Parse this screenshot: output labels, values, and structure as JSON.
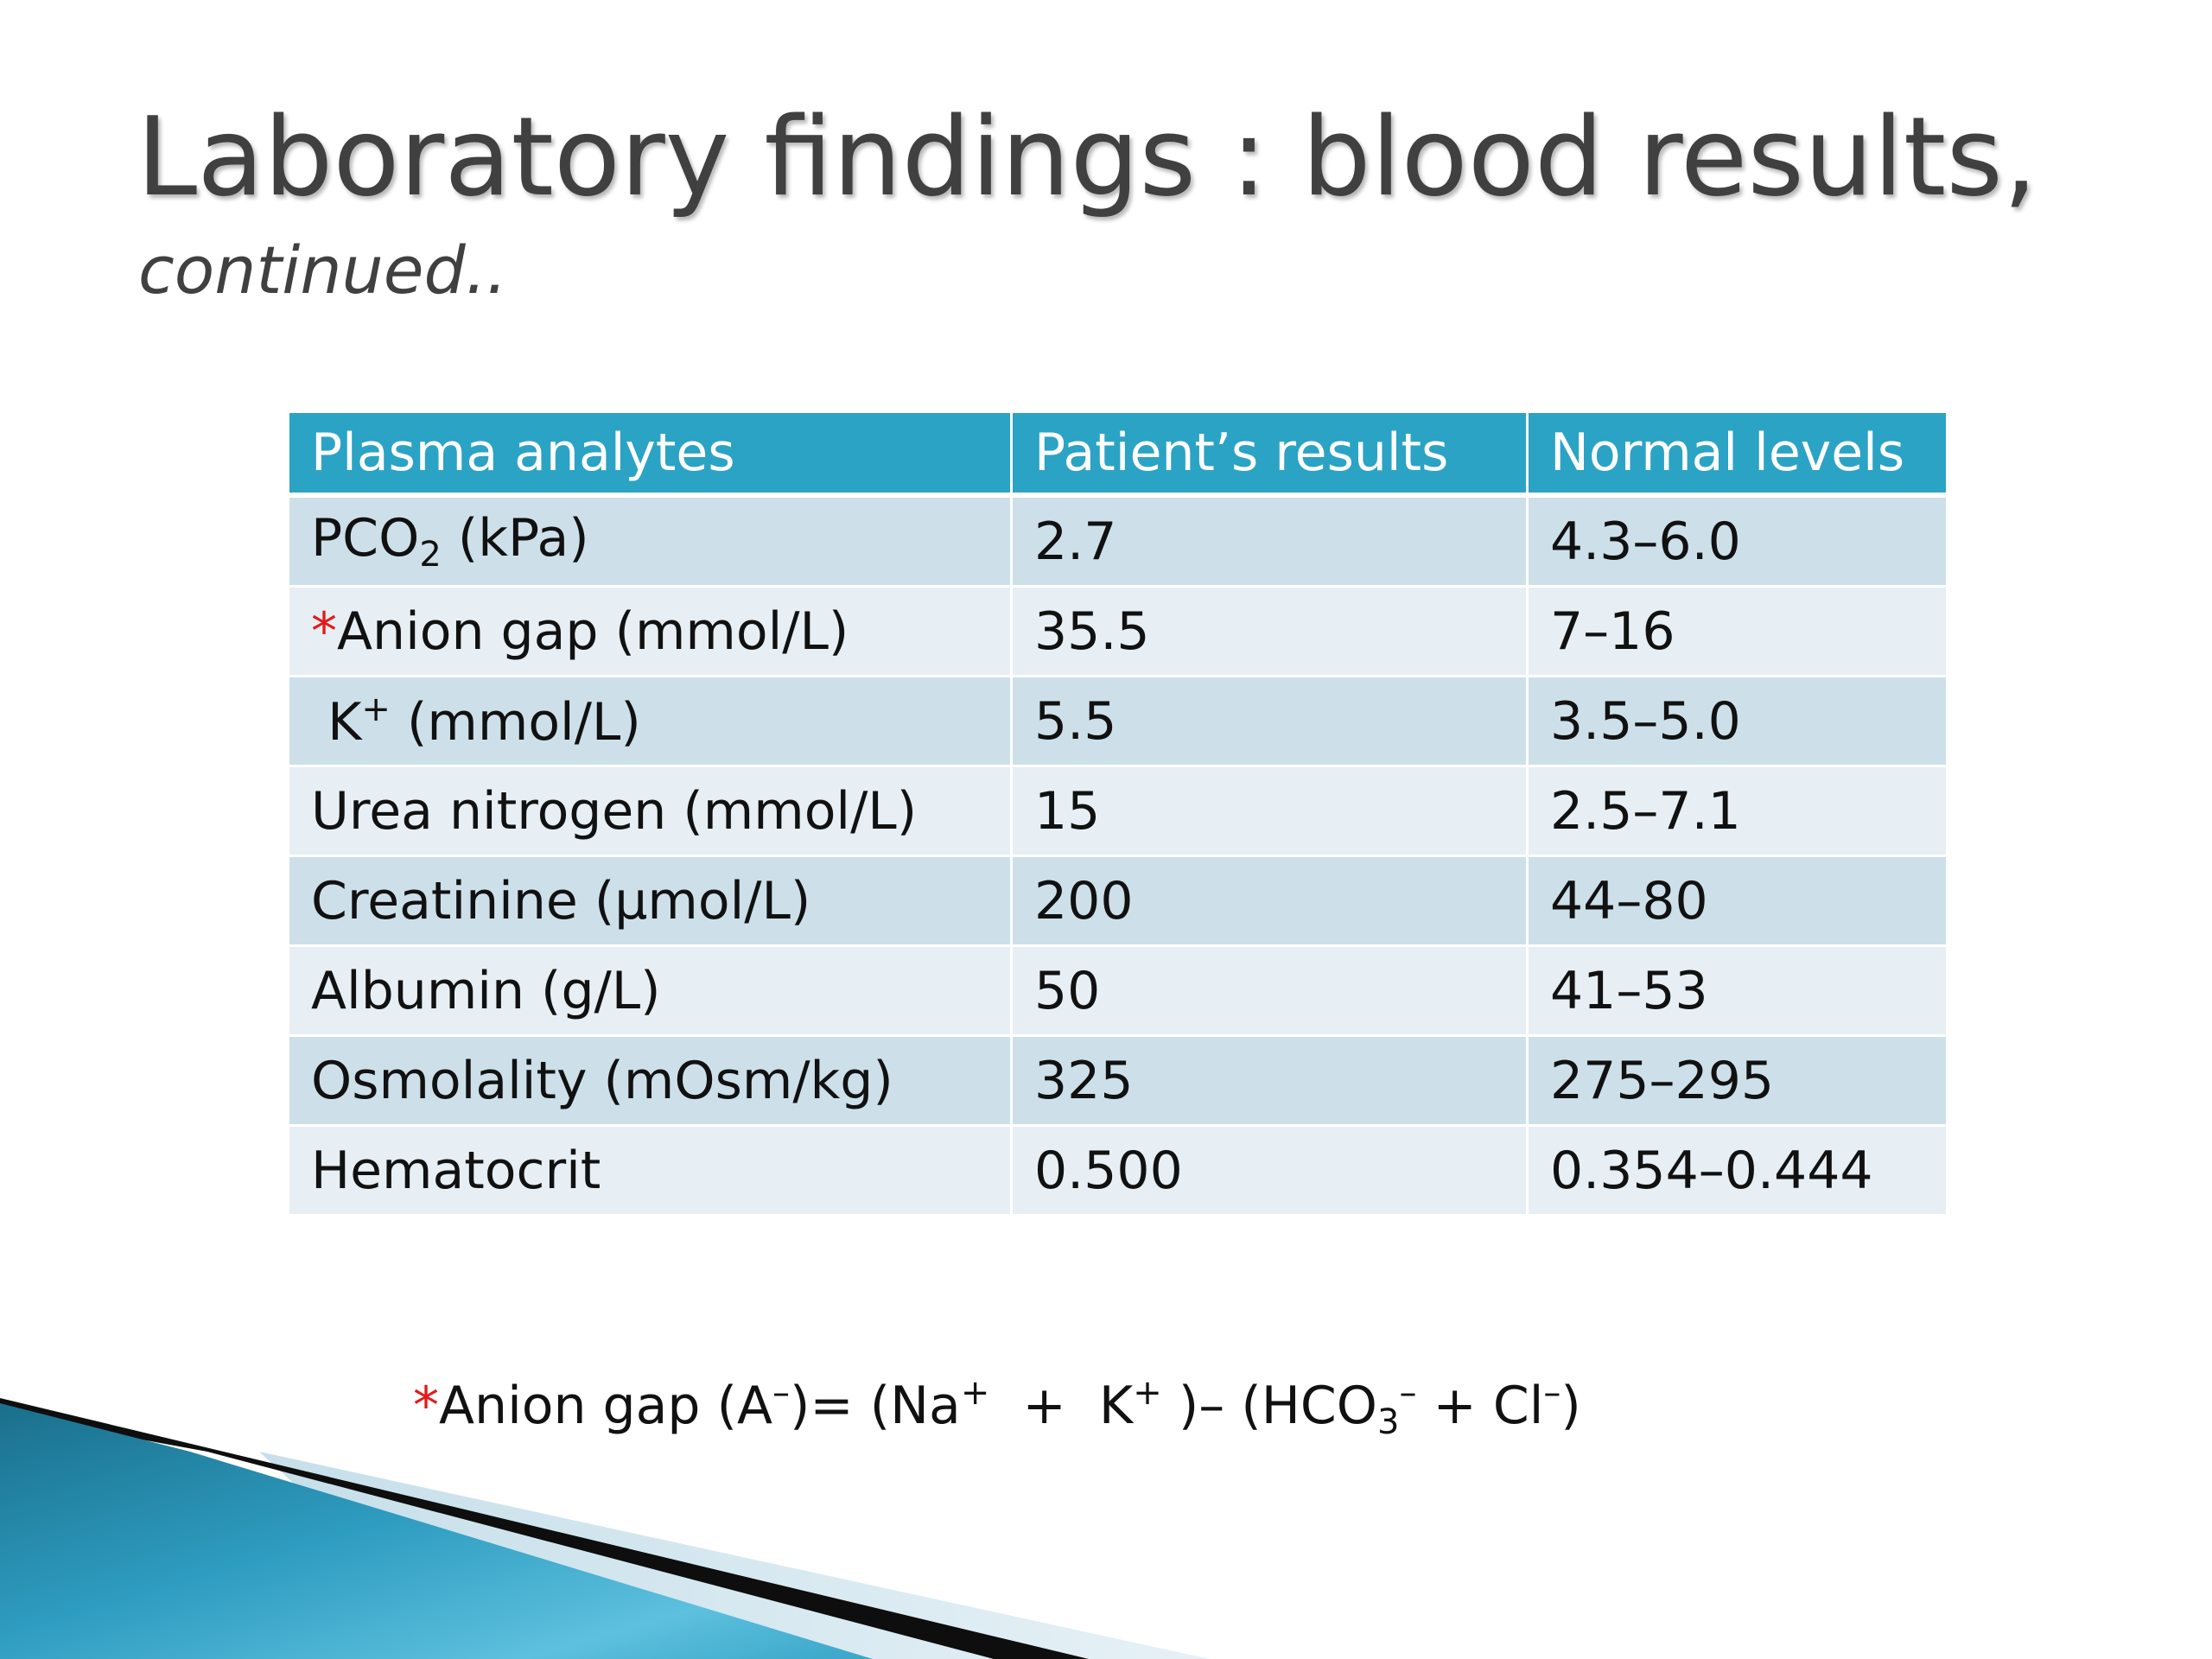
{
  "slide": {
    "title": "Laboratory findings : blood results,",
    "subtitle": "continued.."
  },
  "table": {
    "headers": [
      "Plasma analytes",
      "Patient’s results",
      "Normal levels"
    ],
    "rows": [
      {
        "analyte_main": "PCO",
        "analyte_sub": "2",
        "analyte_rest": " (kPa)",
        "result": "2.7",
        "normal": "4.3–6.0"
      },
      {
        "analyte_mark": "*",
        "analyte_main": "Anion gap (mmol/L)",
        "result": "35.5",
        "normal": "7–16"
      },
      {
        "analyte_main": " K",
        "analyte_sup": "+",
        "analyte_rest": " (mmol/L)",
        "result": "5.5",
        "normal": "3.5–5.0"
      },
      {
        "analyte_main": "Urea nitrogen (mmol/L)",
        "result": "15",
        "normal": "2.5–7.1"
      },
      {
        "analyte_main": "Creatinine (μmol/L)",
        "result": "200",
        "normal": "44–80"
      },
      {
        "analyte_main": "Albumin (g/L)",
        "result": "50",
        "normal": "41–53"
      },
      {
        "analyte_main": "Osmolality (mOsm/kg)",
        "result": "325",
        "normal": "275–295"
      },
      {
        "analyte_main": "Hematocrit",
        "result": "0.500",
        "normal": "0.354–0.444"
      }
    ]
  },
  "footnote": {
    "mark": "*",
    "p1": "Anion gap (A",
    "s1": "–",
    "p2": ")= (Na",
    "s2": "+",
    "p3": "  +  K",
    "s3": "+",
    "p4": " )– (HCO",
    "sub4": "3",
    "s4": "–",
    "p5": " + Cl",
    "s5": "–",
    "p6": ")"
  },
  "colors": {
    "header_bg": "#2ba3c4",
    "row_odd": "#cde0ea",
    "row_even": "#e7eff4",
    "title_text": "#404040",
    "asterisk": "#e31a1a",
    "decor_blue": "#1f8fae",
    "decor_light": "#d4e7ef"
  }
}
